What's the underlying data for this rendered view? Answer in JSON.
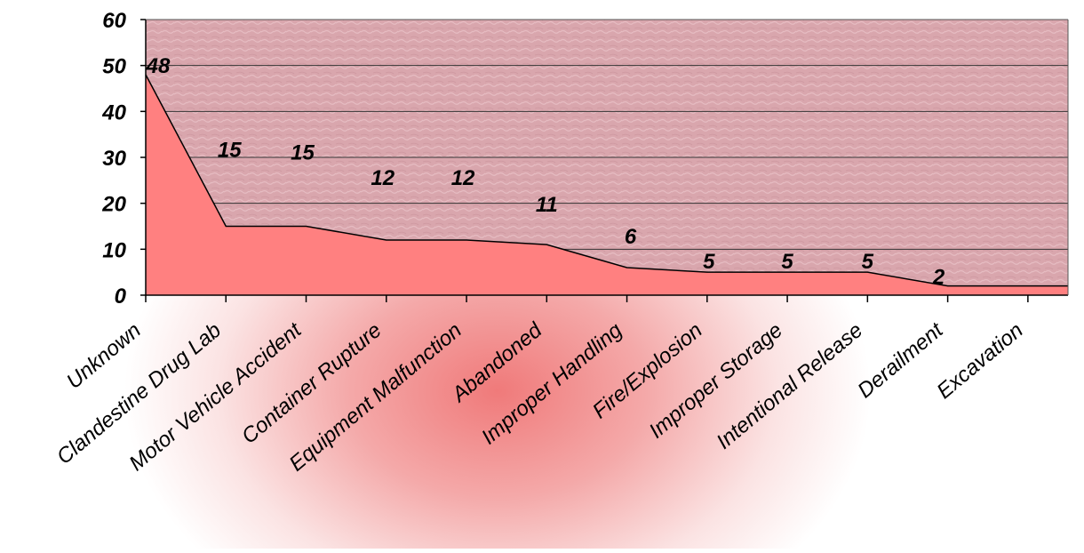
{
  "chart_data": {
    "type": "area",
    "categories": [
      "Unknown",
      "Clandestine Drug Lab",
      "Motor Vehicle Accident",
      "Container Rupture",
      "Equipment Malfunction",
      "Abandoned",
      "Improper Handling",
      "Fire/Explosion",
      "Improper Storage",
      "Intentional Release",
      "Derailment",
      "Excavation"
    ],
    "values": [
      48,
      15,
      15,
      12,
      12,
      11,
      6,
      5,
      5,
      5,
      2,
      2
    ],
    "ylim": [
      0,
      60
    ],
    "yticks": [
      "0",
      "10",
      "20",
      "30",
      "40",
      "50",
      "60"
    ],
    "grid": true,
    "data_labels": true,
    "colors": {
      "area_fill": "#ff8080",
      "plot_background": "#dcaab0",
      "line": "#000000",
      "grid": "#333333"
    }
  }
}
